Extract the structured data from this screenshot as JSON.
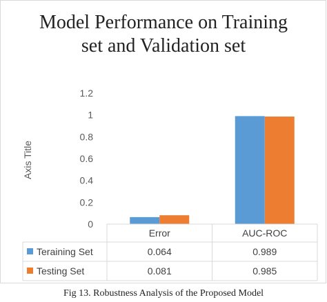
{
  "chart_data": {
    "type": "bar",
    "title_lines": [
      "Model Performance on Training",
      "set and Validation set"
    ],
    "ylabel": "Axis Title",
    "xlabel": "",
    "categories": [
      "Error",
      "AUC-ROC"
    ],
    "series": [
      {
        "name": "Teraining Set",
        "values": [
          0.064,
          0.989
        ],
        "color": "#5b9bd5"
      },
      {
        "name": "Testing Set",
        "values": [
          0.081,
          0.985
        ],
        "color": "#ed7d31"
      }
    ],
    "ylim": [
      0,
      1.2
    ],
    "yticks": [
      "0",
      "0.2",
      "0.4",
      "0.6",
      "0.8",
      "1",
      "1.2"
    ],
    "data_table": [
      [
        "0.064",
        "0.989"
      ],
      [
        "0.081",
        "0.985"
      ]
    ],
    "grid": false,
    "legend": "data table"
  },
  "caption": "Fig 13. Robustness Analysis of the Proposed Model"
}
